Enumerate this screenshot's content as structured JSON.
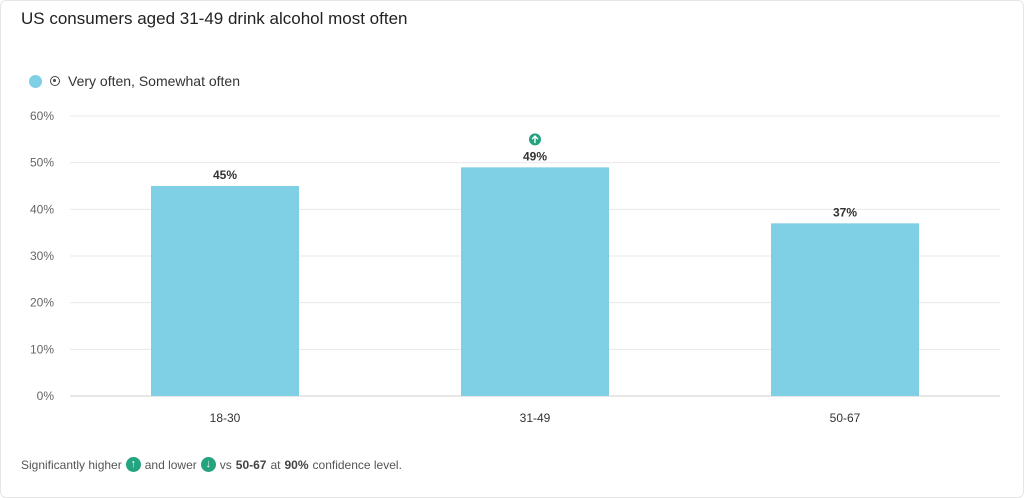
{
  "title": "US consumers aged 31-49 drink alcohol most often",
  "legend": {
    "label": "Very often, Somewhat often"
  },
  "colors": {
    "bar": "#7fcfe5",
    "grid": "#e8e8e8",
    "axis": "#cfcfcf",
    "significance": "#23a37f"
  },
  "footnote": {
    "prefix": "Significantly higher",
    "and_lower": "and lower",
    "vs": "vs",
    "group": "50-67",
    "at": "at",
    "level": "90%",
    "suffix": "confidence level."
  },
  "chart_data": {
    "type": "bar",
    "categories": [
      "18-30",
      "31-49",
      "50-67"
    ],
    "series": [
      {
        "name": "Very often, Somewhat often",
        "values": [
          45,
          49,
          37
        ]
      }
    ],
    "data_labels": [
      "45%",
      "49%",
      "37%"
    ],
    "significance": [
      null,
      "higher",
      null
    ],
    "ylim": [
      0,
      60
    ],
    "yticks": [
      0,
      10,
      20,
      30,
      40,
      50,
      60
    ],
    "ytick_labels": [
      "0%",
      "10%",
      "20%",
      "30%",
      "40%",
      "50%",
      "60%"
    ],
    "grid": true,
    "legend_position": "top-left"
  }
}
